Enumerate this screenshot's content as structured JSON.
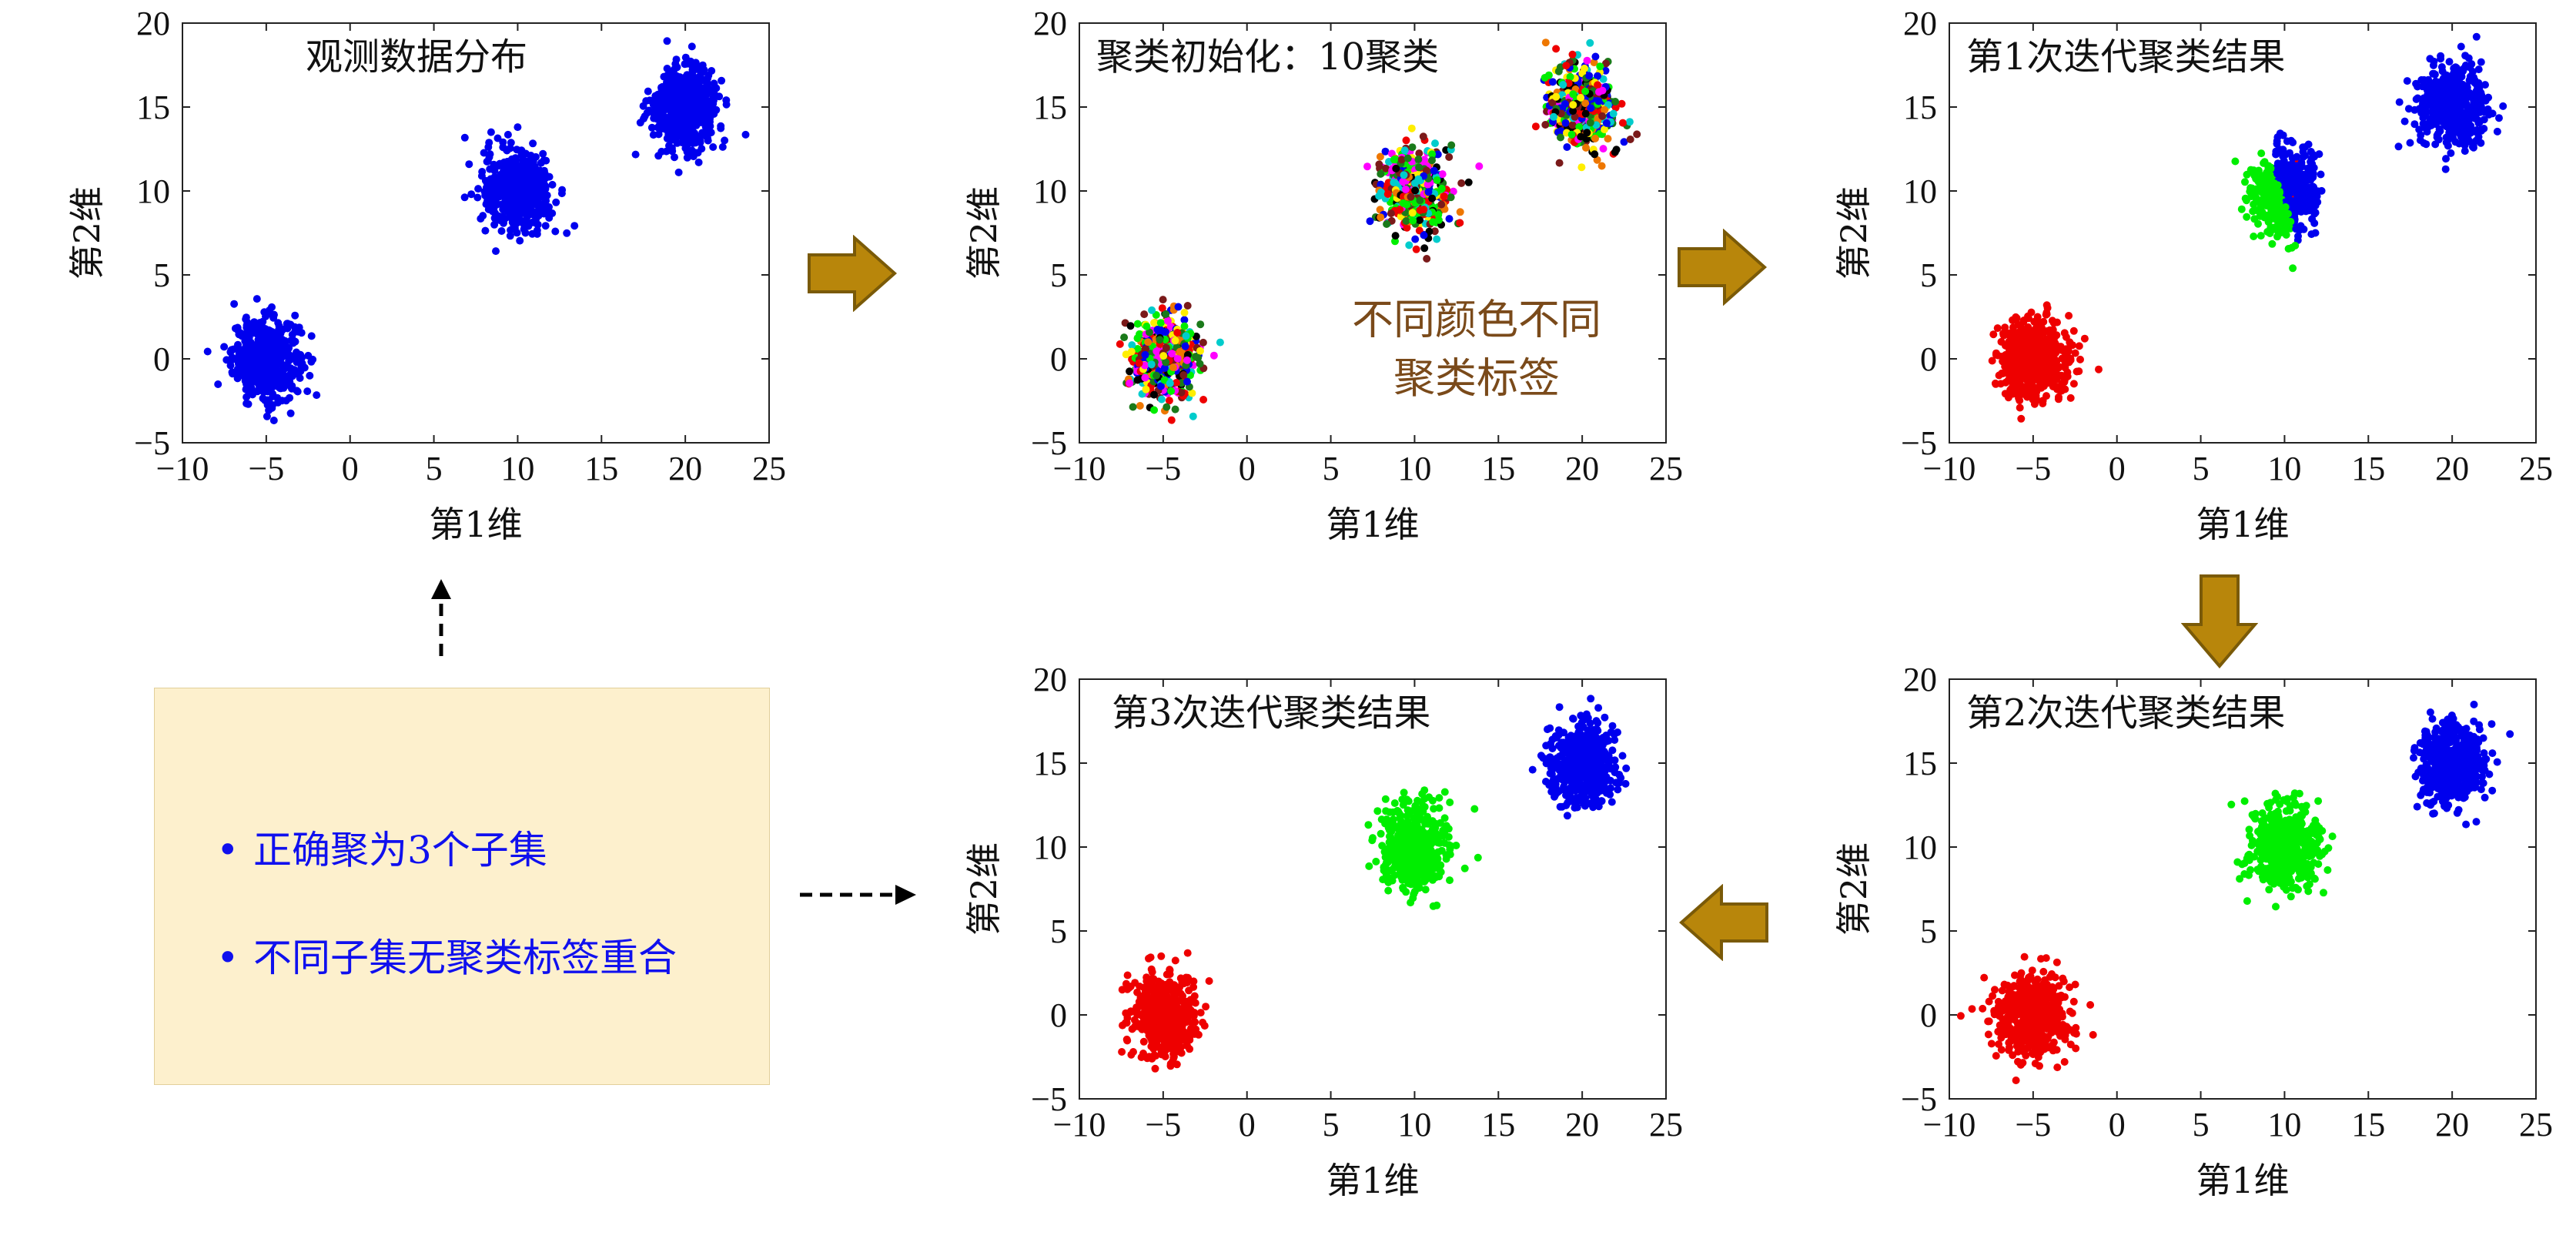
{
  "colors": {
    "blue": "#0000ee",
    "red": "#ee0000",
    "green": "#00ee00",
    "arrow_fill": "#b8860b",
    "arrow_stroke": "#7a5a08",
    "note_text": "#1010ee",
    "annotation_text": "#7a4a1a",
    "note_bg": "#fdf0cd",
    "init_palette": [
      "#0000ee",
      "#ee0000",
      "#00ee00",
      "#ffee00",
      "#ff00ff",
      "#00cccc",
      "#000000",
      "#1a7a1a",
      "#7a1a1a",
      "#ee7700"
    ]
  },
  "icons": {
    "flow_arrow": "block-arrow-icon",
    "dashed_arrow": "dashed-arrow-icon"
  },
  "chart_data": [
    {
      "id": "observed",
      "type": "scatter",
      "title": "观测数据分布",
      "xlabel": "第1维",
      "ylabel": "第2维",
      "xlim": [
        -10,
        25
      ],
      "ylim": [
        -5,
        20
      ],
      "xticks": [
        -10,
        -5,
        0,
        5,
        10,
        15,
        20,
        25
      ],
      "yticks": [
        -5,
        0,
        5,
        10,
        15,
        20
      ],
      "clusters": [
        {
          "center": [
            -5,
            0
          ],
          "spread": [
            1.0,
            1.2
          ],
          "color": "blue"
        },
        {
          "center": [
            10,
            10
          ],
          "spread": [
            1.0,
            1.2
          ],
          "color": "blue"
        },
        {
          "center": [
            20,
            15
          ],
          "spread": [
            1.0,
            1.2
          ],
          "color": "blue"
        }
      ],
      "annotation": []
    },
    {
      "id": "init",
      "type": "scatter",
      "title": "聚类初始化：10聚类",
      "xlabel": "第1维",
      "ylabel": "第2维",
      "xlim": [
        -10,
        25
      ],
      "ylim": [
        -5,
        20
      ],
      "xticks": [
        -10,
        -5,
        0,
        5,
        10,
        15,
        20,
        25
      ],
      "yticks": [
        -5,
        0,
        5,
        10,
        15,
        20
      ],
      "clusters": [
        {
          "center": [
            -5,
            0
          ],
          "spread": [
            1.0,
            1.2
          ],
          "color": "mixed"
        },
        {
          "center": [
            10,
            10
          ],
          "spread": [
            1.0,
            1.2
          ],
          "color": "mixed"
        },
        {
          "center": [
            20,
            15
          ],
          "spread": [
            1.0,
            1.2
          ],
          "color": "mixed"
        }
      ],
      "annotation": [
        "不同颜色不同",
        "聚类标签"
      ]
    },
    {
      "id": "iter1",
      "type": "scatter",
      "title": "第1次迭代聚类结果",
      "xlabel": "第1维",
      "ylabel": "第2维",
      "xlim": [
        -10,
        25
      ],
      "ylim": [
        -5,
        20
      ],
      "xticks": [
        -10,
        -5,
        0,
        5,
        10,
        15,
        20,
        25
      ],
      "yticks": [
        -5,
        0,
        5,
        10,
        15,
        20
      ],
      "clusters": [
        {
          "center": [
            -5,
            0
          ],
          "spread": [
            1.0,
            1.2
          ],
          "color": "red"
        },
        {
          "center": [
            10,
            10
          ],
          "spread": [
            1.0,
            1.2
          ],
          "color": "split-green-blue"
        },
        {
          "center": [
            20,
            15
          ],
          "spread": [
            1.0,
            1.2
          ],
          "color": "blue"
        }
      ],
      "annotation": []
    },
    {
      "id": "iter2",
      "type": "scatter",
      "title": "第2次迭代聚类结果",
      "xlabel": "第1维",
      "ylabel": "第2维",
      "xlim": [
        -10,
        25
      ],
      "ylim": [
        -5,
        20
      ],
      "xticks": [
        -10,
        -5,
        0,
        5,
        10,
        15,
        20,
        25
      ],
      "yticks": [
        -5,
        0,
        5,
        10,
        15,
        20
      ],
      "clusters": [
        {
          "center": [
            -5,
            0
          ],
          "spread": [
            1.0,
            1.2
          ],
          "color": "red"
        },
        {
          "center": [
            10,
            10
          ],
          "spread": [
            1.0,
            1.2
          ],
          "color": "green"
        },
        {
          "center": [
            20,
            15
          ],
          "spread": [
            1.0,
            1.2
          ],
          "color": "blue"
        }
      ],
      "annotation": []
    },
    {
      "id": "iter3",
      "type": "scatter",
      "title": "第3次迭代聚类结果",
      "xlabel": "第1维",
      "ylabel": "第2维",
      "xlim": [
        -10,
        25
      ],
      "ylim": [
        -5,
        20
      ],
      "xticks": [
        -10,
        -5,
        0,
        5,
        10,
        15,
        20,
        25
      ],
      "yticks": [
        -5,
        0,
        5,
        10,
        15,
        20
      ],
      "clusters": [
        {
          "center": [
            -5,
            0
          ],
          "spread": [
            1.0,
            1.2
          ],
          "color": "red"
        },
        {
          "center": [
            10,
            10
          ],
          "spread": [
            1.0,
            1.2
          ],
          "color": "green"
        },
        {
          "center": [
            20,
            15
          ],
          "spread": [
            1.0,
            1.2
          ],
          "color": "blue"
        }
      ],
      "annotation": []
    }
  ],
  "note": {
    "bullet": "•",
    "items": [
      "正确聚为3个子集",
      "不同子集无聚类标签重合"
    ]
  }
}
